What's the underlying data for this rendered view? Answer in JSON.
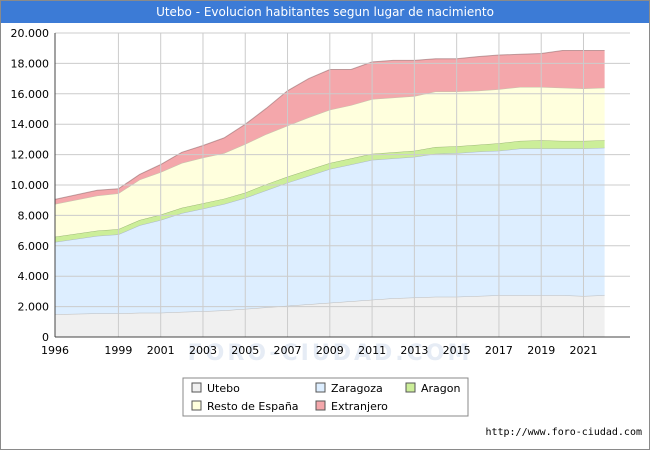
{
  "header": {
    "title": "Utebo - Evolucion habitantes segun lugar de nacimiento"
  },
  "footer": {
    "url": "http://www.foro-ciudad.com"
  },
  "watermark": "FORO-CIUDAD.COM",
  "chart_data": {
    "type": "area",
    "stacked": true,
    "title": "Utebo - Evolucion habitantes segun lugar de nacimiento",
    "xlabel": "",
    "ylabel": "",
    "x": [
      1996,
      1998,
      1999,
      2000,
      2001,
      2002,
      2003,
      2004,
      2005,
      2006,
      2007,
      2008,
      2009,
      2010,
      2011,
      2012,
      2013,
      2014,
      2015,
      2016,
      2017,
      2018,
      2019,
      2020,
      2021,
      2022
    ],
    "xticks": [
      "1996",
      "1999",
      "2001",
      "2003",
      "2005",
      "2007",
      "2009",
      "2011",
      "2013",
      "2015",
      "2017",
      "2019",
      "2021"
    ],
    "xtick_values": [
      1996,
      1999,
      2001,
      2003,
      2005,
      2007,
      2009,
      2011,
      2013,
      2015,
      2017,
      2019,
      2021
    ],
    "xlim": [
      1996,
      2023.2
    ],
    "ylim": [
      0,
      20000
    ],
    "yticks": [
      "0",
      "2.000",
      "4.000",
      "6.000",
      "8.000",
      "10.000",
      "12.000",
      "14.000",
      "16.000",
      "18.000",
      "20.000"
    ],
    "ytick_values": [
      0,
      2000,
      4000,
      6000,
      8000,
      10000,
      12000,
      14000,
      16000,
      18000,
      20000
    ],
    "grid": true,
    "legend_position": "bottom",
    "series": [
      {
        "name": "Utebo",
        "color": "#f0f0f0",
        "values": [
          1500,
          1550,
          1550,
          1600,
          1600,
          1650,
          1700,
          1750,
          1850,
          1950,
          2050,
          2150,
          2250,
          2350,
          2450,
          2550,
          2600,
          2650,
          2650,
          2700,
          2750,
          2750,
          2750,
          2750,
          2700,
          2750
        ]
      },
      {
        "name": "Zaragoza",
        "color": "#ddeeff",
        "values": [
          4750,
          5100,
          5200,
          5750,
          6100,
          6500,
          6750,
          7000,
          7300,
          7700,
          8100,
          8450,
          8800,
          9000,
          9200,
          9200,
          9250,
          9400,
          9450,
          9500,
          9500,
          9650,
          9650,
          9650,
          9700,
          9700
        ]
      },
      {
        "name": "Aragon",
        "color": "#ccee99",
        "values": [
          350,
          350,
          350,
          350,
          350,
          350,
          350,
          350,
          350,
          400,
          400,
          400,
          400,
          400,
          400,
          400,
          400,
          450,
          450,
          450,
          500,
          500,
          550,
          500,
          500,
          500
        ]
      },
      {
        "name": "Resto de España",
        "color": "#ffffdd",
        "values": [
          2150,
          2300,
          2350,
          2650,
          2800,
          2950,
          3000,
          3000,
          3200,
          3300,
          3350,
          3450,
          3500,
          3500,
          3600,
          3600,
          3600,
          3650,
          3600,
          3550,
          3550,
          3550,
          3500,
          3500,
          3450,
          3450
        ]
      },
      {
        "name": "Extranjero",
        "color": "#f4a7ab",
        "values": [
          300,
          350,
          300,
          350,
          500,
          700,
          800,
          1000,
          1300,
          1700,
          2300,
          2550,
          2650,
          2350,
          2450,
          2450,
          2350,
          2150,
          2150,
          2250,
          2250,
          2150,
          2200,
          2450,
          2500,
          2450
        ]
      }
    ]
  }
}
